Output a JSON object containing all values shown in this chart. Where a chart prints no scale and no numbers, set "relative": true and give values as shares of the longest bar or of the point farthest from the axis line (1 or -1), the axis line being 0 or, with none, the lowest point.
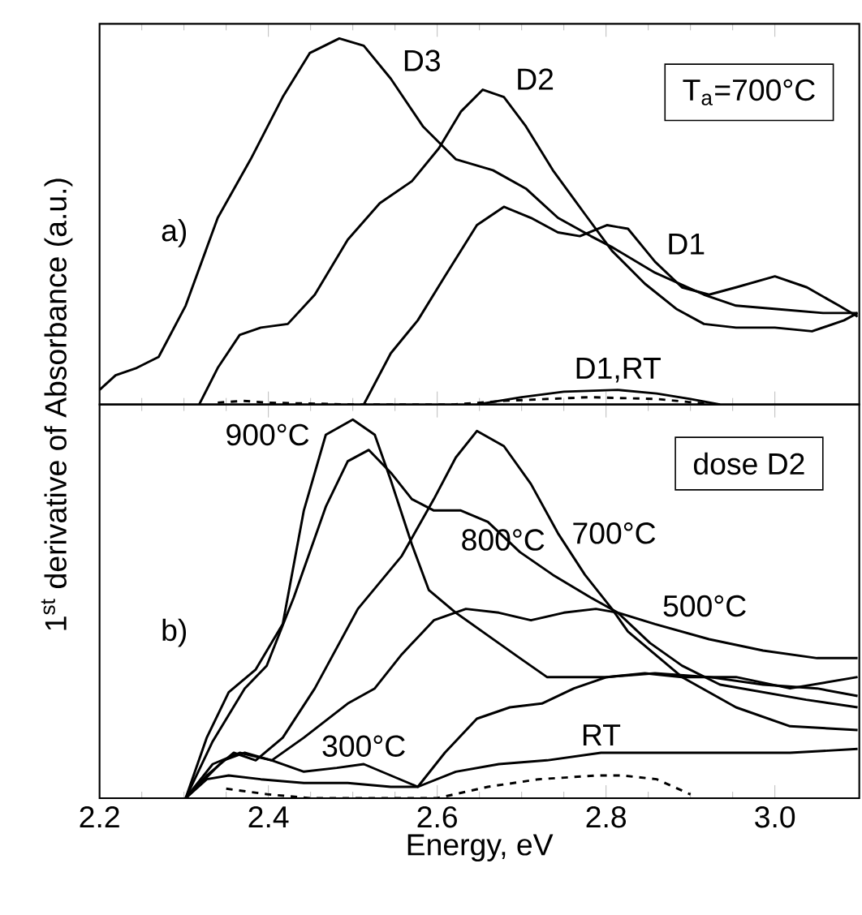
{
  "chart_data": [
    {
      "type": "line",
      "relative": true,
      "ylabel": "1$^{st}$ derivative of Absorbance (a.u.)",
      "xlim": [
        2.2,
        3.1
      ],
      "xticks": [
        2.2,
        2.4,
        2.6,
        2.8,
        3
      ],
      "tick_labels": false,
      "annotations": [
        "a)",
        "T$_{a}$=700°C"
      ],
      "series": [
        {
          "name": "D3",
          "color": "#000000",
          "line_style": "solid",
          "x": [
            2.2,
            2.219,
            2.244,
            2.27,
            2.302,
            2.34,
            2.379,
            2.417,
            2.449,
            2.484,
            2.513,
            2.545,
            2.583,
            2.622,
            2.666,
            2.705,
            2.743,
            2.782,
            2.807,
            2.858,
            2.916,
            2.954,
            3.005,
            3.057,
            3.098
          ],
          "values": [
            0.04,
            0.08,
            0.1,
            0.13,
            0.27,
            0.51,
            0.67,
            0.84,
            0.96,
            1.0,
            0.98,
            0.89,
            0.76,
            0.67,
            0.64,
            0.59,
            0.51,
            0.46,
            0.43,
            0.36,
            0.3,
            0.27,
            0.26,
            0.25,
            0.25
          ]
        },
        {
          "name": "D2",
          "color": "#000000",
          "line_style": "solid",
          "x": [
            2.318,
            2.34,
            2.366,
            2.391,
            2.423,
            2.455,
            2.494,
            2.532,
            2.57,
            2.602,
            2.628,
            2.654,
            2.679,
            2.705,
            2.737,
            2.775,
            2.807,
            2.846,
            2.884,
            2.916,
            2.954,
            3.0,
            3.044,
            3.082,
            3.098
          ],
          "values": [
            0,
            0.1,
            0.19,
            0.21,
            0.22,
            0.3,
            0.45,
            0.55,
            0.61,
            0.7,
            0.8,
            0.86,
            0.84,
            0.76,
            0.64,
            0.52,
            0.42,
            0.33,
            0.26,
            0.22,
            0.21,
            0.21,
            0.2,
            0.23,
            0.25
          ]
        },
        {
          "name": "D1",
          "color": "#000000",
          "line_style": "solid",
          "x": [
            2.513,
            2.545,
            2.577,
            2.609,
            2.647,
            2.679,
            2.711,
            2.743,
            2.769,
            2.801,
            2.826,
            2.858,
            2.89,
            2.922,
            2.954,
            3.0,
            3.038,
            3.076,
            3.098
          ],
          "values": [
            0,
            0.14,
            0.23,
            0.35,
            0.49,
            0.54,
            0.51,
            0.47,
            0.46,
            0.49,
            0.48,
            0.39,
            0.32,
            0.3,
            0.32,
            0.35,
            0.32,
            0.27,
            0.24
          ]
        },
        {
          "name": "D1,RT",
          "color": "#000000",
          "line_style": "solid",
          "x": [
            2.647,
            2.7,
            2.75,
            2.814,
            2.86,
            2.9,
            2.935
          ],
          "values": [
            0,
            0.02,
            0.035,
            0.04,
            0.03,
            0.015,
            0
          ]
        },
        {
          "color": "#000000",
          "line_style": "dashed",
          "x": [
            2.34,
            2.37,
            2.4,
            2.5,
            2.62,
            2.68,
            2.78,
            2.86,
            2.93
          ],
          "values": [
            0.005,
            0.01,
            0.005,
            0,
            0,
            0.01,
            0.02,
            0.015,
            0
          ]
        }
      ]
    },
    {
      "type": "line",
      "relative": true,
      "xlabel": "Energy, eV",
      "xlim": [
        2.2,
        3.1
      ],
      "xticks": [
        2.2,
        2.4,
        2.6,
        2.8,
        {
          "value": 3.0,
          "label": "3.0"
        }
      ],
      "tick_labels": "x",
      "annotations": [
        "b)",
        "dose D2"
      ],
      "series": [
        {
          "name": "900°C",
          "color": "#000000",
          "line_style": "solid",
          "x": [
            2.302,
            2.327,
            2.353,
            2.385,
            2.417,
            2.442,
            2.468,
            2.5,
            2.526,
            2.545,
            2.57,
            2.59,
            2.622,
            2.66,
            2.698,
            2.73,
            2.762,
            2.801,
            2.846,
            2.89,
            2.954,
            3.018,
            3.098
          ],
          "values": [
            0,
            0.16,
            0.28,
            0.34,
            0.46,
            0.76,
            0.96,
            1.0,
            0.96,
            0.84,
            0.67,
            0.55,
            0.49,
            0.43,
            0.37,
            0.32,
            0.32,
            0.32,
            0.33,
            0.32,
            0.32,
            0.29,
            0.32
          ]
        },
        {
          "name": "800°C",
          "color": "#000000",
          "line_style": "solid",
          "x": [
            2.302,
            2.334,
            2.372,
            2.398,
            2.43,
            2.468,
            2.494,
            2.519,
            2.545,
            2.57,
            2.596,
            2.628,
            2.66,
            2.698,
            2.737,
            2.782,
            2.814,
            2.852,
            2.89,
            2.935,
            2.986,
            3.037,
            3.098
          ],
          "values": [
            0,
            0.15,
            0.29,
            0.35,
            0.53,
            0.77,
            0.89,
            0.92,
            0.86,
            0.79,
            0.76,
            0.76,
            0.73,
            0.65,
            0.59,
            0.53,
            0.49,
            0.41,
            0.35,
            0.3,
            0.28,
            0.26,
            0.24
          ]
        },
        {
          "name": "700°C",
          "color": "#000000",
          "line_style": "solid",
          "x": [
            2.302,
            2.327,
            2.359,
            2.385,
            2.417,
            2.455,
            2.506,
            2.558,
            2.596,
            2.622,
            2.647,
            2.679,
            2.711,
            2.743,
            2.775,
            2.807,
            2.826,
            2.858,
            2.89,
            2.922,
            2.954,
            3.018,
            3.098
          ],
          "values": [
            0,
            0.06,
            0.12,
            0.1,
            0.16,
            0.29,
            0.5,
            0.64,
            0.79,
            0.9,
            0.97,
            0.93,
            0.83,
            0.7,
            0.59,
            0.5,
            0.44,
            0.38,
            0.32,
            0.28,
            0.24,
            0.19,
            0.18
          ]
        },
        {
          "name": "500°C",
          "color": "#000000",
          "line_style": "solid",
          "x": [
            2.302,
            2.347,
            2.372,
            2.404,
            2.442,
            2.494,
            2.526,
            2.558,
            2.596,
            2.634,
            2.673,
            2.711,
            2.75,
            2.788,
            2.814,
            2.858,
            2.922,
            2.986,
            3.05,
            3.098
          ],
          "values": [
            0,
            0.1,
            0.12,
            0.1,
            0.16,
            0.25,
            0.29,
            0.38,
            0.47,
            0.5,
            0.49,
            0.47,
            0.49,
            0.5,
            0.49,
            0.46,
            0.42,
            0.39,
            0.37,
            0.37
          ]
        },
        {
          "name": "300°C",
          "color": "#000000",
          "line_style": "solid",
          "x": [
            2.302,
            2.334,
            2.366,
            2.404,
            2.442,
            2.481,
            2.513,
            2.545,
            2.577,
            2.609,
            2.647,
            2.686,
            2.724,
            2.762,
            2.801,
            2.858,
            2.922,
            2.986,
            3.05,
            3.098
          ],
          "values": [
            0,
            0.09,
            0.12,
            0.1,
            0.07,
            0.08,
            0.09,
            0.06,
            0.03,
            0.12,
            0.21,
            0.24,
            0.25,
            0.29,
            0.32,
            0.33,
            0.32,
            0.3,
            0.29,
            0.27
          ]
        },
        {
          "name": "RT",
          "color": "#000000",
          "line_style": "solid",
          "x": [
            2.302,
            2.327,
            2.353,
            2.391,
            2.442,
            2.494,
            2.545,
            2.577,
            2.622,
            2.673,
            2.73,
            2.794,
            2.858,
            2.922,
            3.018,
            3.098
          ],
          "values": [
            0,
            0.05,
            0.06,
            0.05,
            0.04,
            0.04,
            0.03,
            0.03,
            0.07,
            0.09,
            0.1,
            0.12,
            0.12,
            0.12,
            0.12,
            0.13
          ]
        },
        {
          "color": "#000000",
          "line_style": "dashed",
          "x": [
            2.35,
            2.4,
            2.45,
            2.6,
            2.66,
            2.72,
            2.79,
            2.82,
            2.86,
            2.9
          ],
          "values": [
            0.025,
            0.01,
            0,
            0,
            0.03,
            0.05,
            0.06,
            0.06,
            0.05,
            0.01
          ]
        }
      ]
    }
  ]
}
